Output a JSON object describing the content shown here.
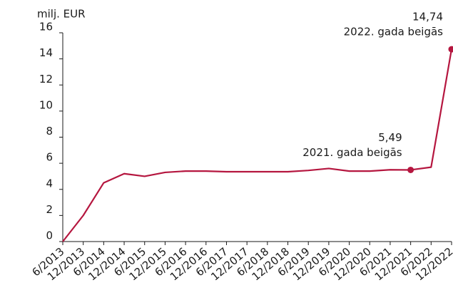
{
  "chart_data": {
    "type": "line",
    "y_label": "milj. EUR",
    "categories": [
      "6/2013",
      "12/2013",
      "6/2014",
      "12/2014",
      "6/2015",
      "12/2015",
      "6/2016",
      "12/2016",
      "6/2017",
      "12/2017",
      "6/2018",
      "12/2018",
      "6/2019",
      "12/2019",
      "6/2020",
      "12/2020",
      "6/2021",
      "12/2021",
      "6/2022",
      "12/2022"
    ],
    "series": [
      {
        "color": "#b5163f",
        "values": [
          0,
          2.0,
          4.5,
          5.2,
          5.0,
          5.3,
          5.4,
          5.4,
          5.35,
          5.35,
          5.35,
          5.35,
          5.45,
          5.6,
          5.4,
          5.4,
          5.5,
          5.49,
          5.7,
          14.74
        ],
        "value_labels": [
          null,
          null,
          null,
          null,
          null,
          null,
          null,
          null,
          null,
          null,
          null,
          null,
          null,
          null,
          null,
          null,
          null,
          "5,49",
          null,
          "14,74"
        ],
        "value_notes": [
          null,
          null,
          null,
          null,
          null,
          null,
          null,
          null,
          null,
          null,
          null,
          null,
          null,
          null,
          null,
          null,
          null,
          "2021. gada beigās",
          null,
          "2022. gada beigās"
        ]
      }
    ],
    "ylim": [
      0,
      16
    ],
    "yticks": [
      0,
      2,
      4,
      6,
      8,
      10,
      12,
      14,
      16
    ],
    "grid": false
  }
}
